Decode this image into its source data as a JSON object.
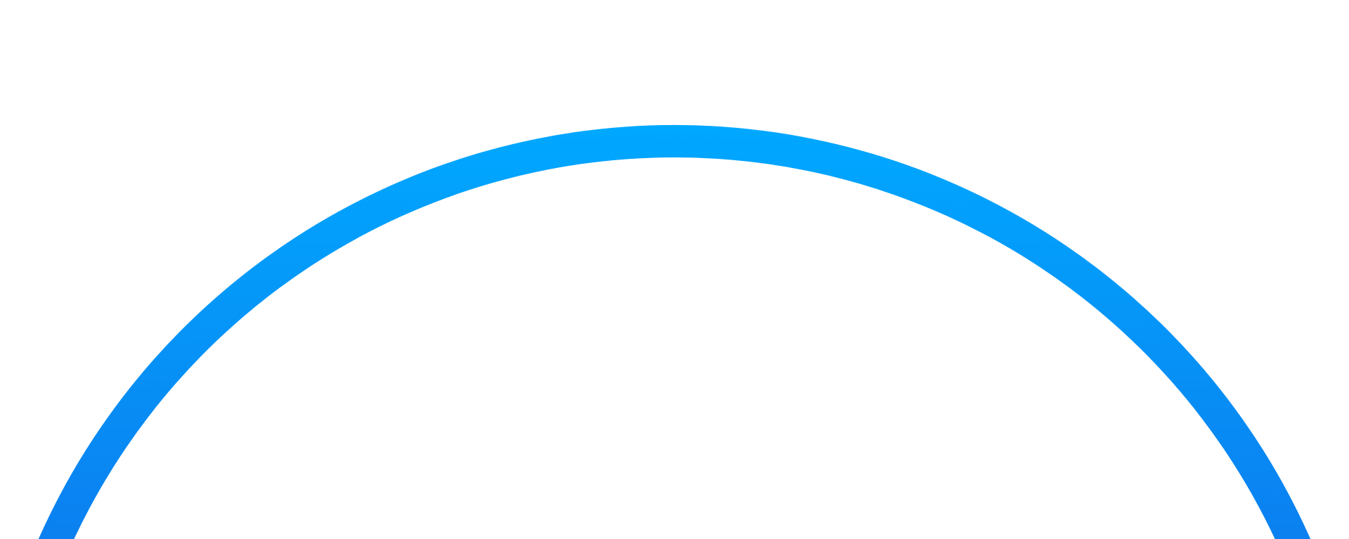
{
  "graphic": {
    "shape": "ring-arc",
    "colors": {
      "top": "#00a8ff",
      "bottom": "#0b80f0",
      "background": "#ffffff"
    }
  }
}
